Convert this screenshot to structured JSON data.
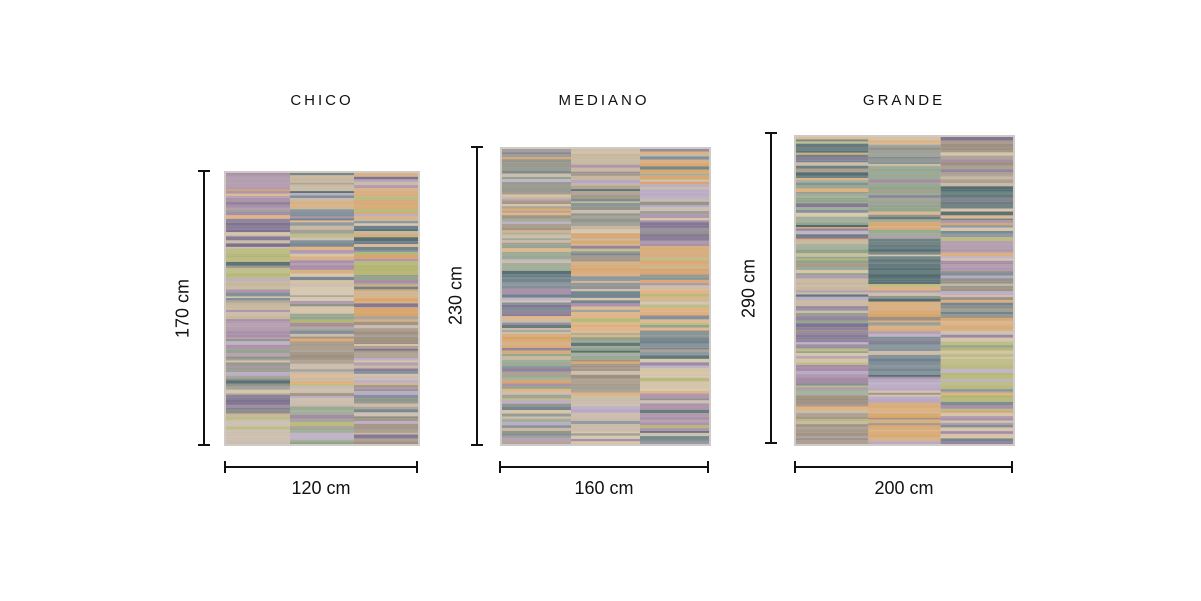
{
  "sizes": [
    {
      "name": "CHICO",
      "height_label": "170 cm",
      "width_label": "120 cm"
    },
    {
      "name": "MEDIANO",
      "height_label": "230 cm",
      "width_label": "160 cm"
    },
    {
      "name": "GRANDE",
      "height_label": "290 cm",
      "width_label": "200 cm"
    }
  ],
  "rug_palette": [
    "#c9b9a8",
    "#8c8f86",
    "#d8a46a",
    "#7c6f8f",
    "#8fa28a",
    "#4f6a6e",
    "#b7a7c6",
    "#d6c3a5",
    "#e0b07c",
    "#9c8e7e",
    "#6d7f8c",
    "#c6b59a",
    "#a58aa6",
    "#b3b56f"
  ]
}
